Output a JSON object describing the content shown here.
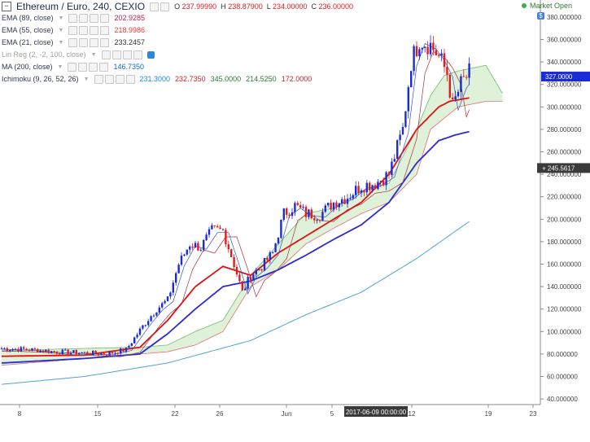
{
  "header": {
    "symbol_title": "Ethereum / Euro, 240, CEXIO",
    "ohlc": {
      "o_label": "O",
      "o": "237.99990",
      "h_label": "H",
      "h": "238.87900",
      "l_label": "L",
      "l": "234.00000",
      "c_label": "C",
      "c": "236.00000"
    },
    "market_status": "Market Open"
  },
  "indicators": [
    {
      "name": "EMA (89, close)",
      "values": [
        "202.9285"
      ],
      "colors": [
        "#c2185b"
      ]
    },
    {
      "name": "EMA (55, close)",
      "values": [
        "218.9986"
      ],
      "colors": [
        "#e53935"
      ]
    },
    {
      "name": "EMA (21, close)",
      "values": [
        "233.2457"
      ],
      "colors": [
        "#333333"
      ]
    },
    {
      "name": "Lin Reg (2, -2, 100, close)",
      "values": [],
      "colors": [],
      "hidden": true
    },
    {
      "name": "MA (200, close)",
      "values": [
        "146.7350"
      ],
      "colors": [
        "#1565c0"
      ]
    },
    {
      "name": "Ichimoku (9, 26, 52, 26)",
      "values": [
        "231.3000",
        "232.7350",
        "345.0000",
        "214.5250",
        "172.0000"
      ],
      "colors": [
        "#1e88e5",
        "#c62828",
        "#2e7d32",
        "#2e7d32",
        "#c62828"
      ]
    }
  ],
  "colors": {
    "up": "#1a2bd8",
    "down": "#e31b1b",
    "ma89": "#2a2ad0",
    "ma55": "#e01010",
    "ma200": "#4da3d6",
    "cloud_fill": "#dff1d9",
    "price_tag": "#1a2bd8",
    "cross_tag": "#3a3a3a"
  },
  "chart_data": {
    "type": "candlestick",
    "title": "Ethereum / Euro, 240, CEXIO",
    "y_axis": {
      "min": 35,
      "max": 385,
      "tick_labels": [
        "380.000000",
        "360.000000",
        "340.000000",
        "320.000000",
        "300.000000",
        "280.000000",
        "260.000000",
        "240.000000",
        "220.000000",
        "200.000000",
        "180.000000",
        "160.000000",
        "140.000000",
        "120.000000",
        "100.000000",
        "80.000000",
        "60.000000",
        "40.000000"
      ],
      "tick_values": [
        380,
        360,
        340,
        320,
        300,
        280,
        260,
        240,
        220,
        200,
        180,
        160,
        140,
        120,
        100,
        80,
        60,
        40
      ]
    },
    "x_axis": {
      "tick_labels": [
        "8",
        "15",
        "22",
        "26",
        "Jun",
        "5",
        "12",
        "19",
        "23"
      ],
      "crosshair_label": "2017-06-09 00:00:00"
    },
    "price_label": "327.0000",
    "crosshair_price_label": "245.5617",
    "anchors": [
      [
        0,
        85
      ],
      [
        10,
        84
      ],
      [
        20,
        82
      ],
      [
        30,
        81
      ],
      [
        38,
        80
      ],
      [
        45,
        84
      ],
      [
        52,
        108
      ],
      [
        56,
        120
      ],
      [
        60,
        128
      ],
      [
        64,
        160
      ],
      [
        68,
        178
      ],
      [
        72,
        175
      ],
      [
        76,
        190
      ],
      [
        80,
        190
      ],
      [
        84,
        160
      ],
      [
        87,
        135
      ],
      [
        90,
        150
      ],
      [
        94,
        158
      ],
      [
        98,
        170
      ],
      [
        102,
        205
      ],
      [
        106,
        212
      ],
      [
        110,
        205
      ],
      [
        115,
        204
      ],
      [
        120,
        215
      ],
      [
        125,
        220
      ],
      [
        130,
        230
      ],
      [
        135,
        232
      ],
      [
        140,
        240
      ],
      [
        145,
        280
      ],
      [
        148,
        340
      ],
      [
        151,
        360
      ],
      [
        155,
        355
      ],
      [
        158,
        345
      ],
      [
        161,
        330
      ],
      [
        163,
        300
      ],
      [
        166,
        320
      ],
      [
        169,
        330
      ]
    ],
    "ma55_anchors": [
      [
        0,
        78
      ],
      [
        30,
        79
      ],
      [
        50,
        86
      ],
      [
        60,
        110
      ],
      [
        70,
        140
      ],
      [
        80,
        158
      ],
      [
        90,
        150
      ],
      [
        100,
        170
      ],
      [
        110,
        185
      ],
      [
        120,
        200
      ],
      [
        130,
        215
      ],
      [
        140,
        240
      ],
      [
        150,
        280
      ],
      [
        158,
        300
      ],
      [
        162,
        305
      ],
      [
        169,
        308
      ]
    ],
    "ma89_anchors": [
      [
        0,
        72
      ],
      [
        30,
        76
      ],
      [
        50,
        80
      ],
      [
        60,
        98
      ],
      [
        70,
        120
      ],
      [
        80,
        140
      ],
      [
        90,
        145
      ],
      [
        100,
        155
      ],
      [
        110,
        168
      ],
      [
        120,
        182
      ],
      [
        130,
        195
      ],
      [
        140,
        215
      ],
      [
        150,
        250
      ],
      [
        158,
        270
      ],
      [
        164,
        275
      ],
      [
        169,
        278
      ]
    ],
    "ma200_anchors": [
      [
        0,
        53
      ],
      [
        30,
        60
      ],
      [
        60,
        72
      ],
      [
        90,
        92
      ],
      [
        110,
        115
      ],
      [
        130,
        135
      ],
      [
        150,
        165
      ],
      [
        169,
        198
      ]
    ],
    "cloud_top": [
      [
        0,
        83
      ],
      [
        30,
        85
      ],
      [
        50,
        86
      ],
      [
        60,
        88
      ],
      [
        70,
        100
      ],
      [
        80,
        110
      ],
      [
        90,
        150
      ],
      [
        100,
        178
      ],
      [
        110,
        205
      ],
      [
        120,
        210
      ],
      [
        130,
        225
      ],
      [
        140,
        232
      ],
      [
        150,
        280
      ],
      [
        155,
        310
      ],
      [
        160,
        328
      ],
      [
        165,
        332
      ],
      [
        175,
        337
      ],
      [
        181,
        312
      ]
    ],
    "cloud_bottom": [
      [
        0,
        70
      ],
      [
        30,
        76
      ],
      [
        50,
        80
      ],
      [
        60,
        82
      ],
      [
        70,
        88
      ],
      [
        80,
        100
      ],
      [
        90,
        140
      ],
      [
        100,
        155
      ],
      [
        110,
        178
      ],
      [
        120,
        192
      ],
      [
        130,
        205
      ],
      [
        140,
        215
      ],
      [
        150,
        240
      ],
      [
        155,
        280
      ],
      [
        160,
        290
      ],
      [
        165,
        300
      ],
      [
        175,
        305
      ],
      [
        181,
        305
      ]
    ]
  }
}
